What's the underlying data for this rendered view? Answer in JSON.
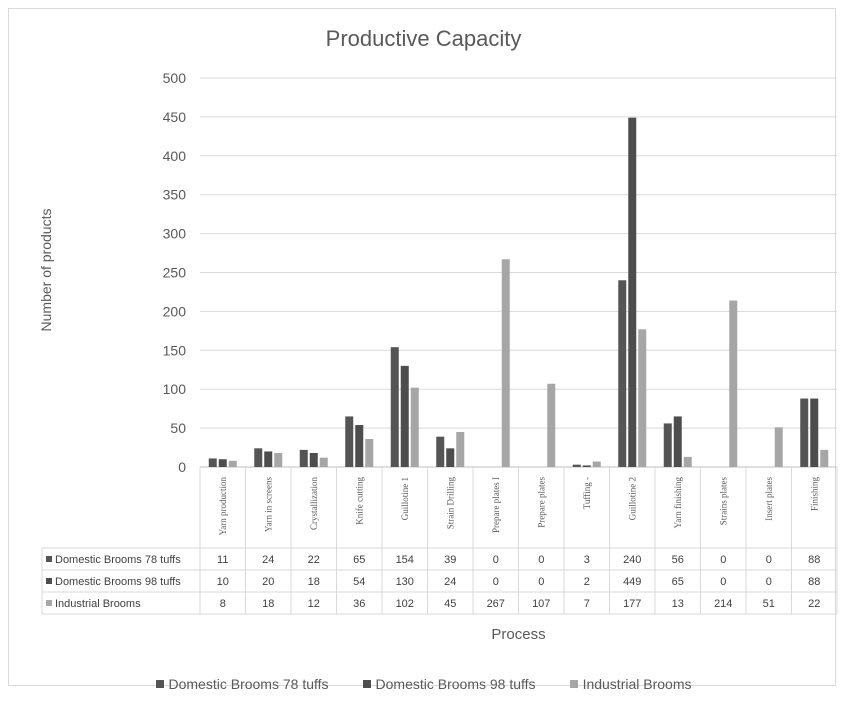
{
  "chart_data": {
    "type": "bar",
    "title": "Productive Capacity",
    "xlabel": "Process",
    "ylabel": "Number of products",
    "ylim": [
      0,
      500
    ],
    "yticks": [
      0,
      50,
      100,
      150,
      200,
      250,
      300,
      350,
      400,
      450,
      500
    ],
    "grid": true,
    "legend_position": "bottom",
    "data_table": true,
    "categories": [
      "Yarn production",
      "Yarn in screens",
      "Crystallization",
      "Knife cutting",
      "Guillotine 1",
      "Strain Drilling",
      "Prepare plates I",
      "Prepare plates",
      "Tuffing -",
      "Guillotine 2",
      "Yarn finishing",
      "Strains plates",
      "Insert plates",
      "Finishing"
    ],
    "series": [
      {
        "name": "Domestic Brooms 78 tuffs",
        "color": "#555555",
        "values": [
          11,
          24,
          22,
          65,
          154,
          39,
          0,
          0,
          3,
          240,
          56,
          0,
          0,
          88
        ]
      },
      {
        "name": "Domestic Brooms 98 tuffs",
        "color": "#4d4d4d",
        "values": [
          10,
          20,
          18,
          54,
          130,
          24,
          0,
          0,
          2,
          449,
          65,
          0,
          0,
          88
        ]
      },
      {
        "name": "Industrial Brooms",
        "color": "#a6a6a6",
        "values": [
          8,
          18,
          12,
          36,
          102,
          45,
          267,
          107,
          7,
          177,
          13,
          214,
          51,
          22
        ]
      }
    ]
  }
}
